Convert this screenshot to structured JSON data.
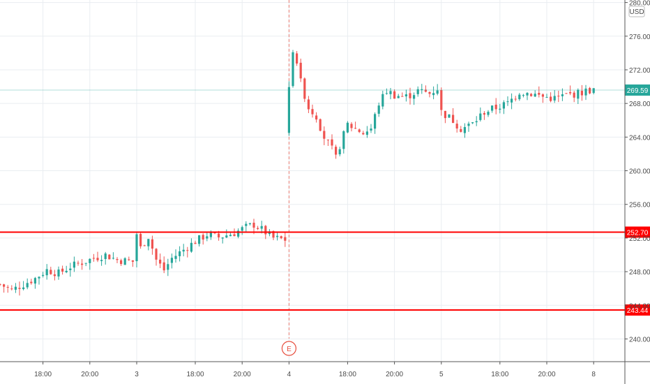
{
  "chart_data": {
    "type": "candlestick",
    "y_axis": {
      "unit_label": "USD",
      "ticks": [
        280,
        276,
        272,
        268,
        264,
        260,
        256,
        252,
        248,
        244,
        240
      ],
      "ylim": [
        237.3,
        280.3
      ]
    },
    "x_axis": {
      "ticks": [
        {
          "label": "18:00",
          "bar": 11
        },
        {
          "label": "20:00",
          "bar": 23
        },
        {
          "label": "3",
          "bar": 35
        },
        {
          "label": "18:00",
          "bar": 50
        },
        {
          "label": "20:00",
          "bar": 62
        },
        {
          "label": "4",
          "bar": 74
        },
        {
          "label": "18:00",
          "bar": 89
        },
        {
          "label": "20:00",
          "bar": 101
        },
        {
          "label": "5",
          "bar": 113
        },
        {
          "label": "18:00",
          "bar": 128
        },
        {
          "label": "20:00",
          "bar": 140
        },
        {
          "label": "8",
          "bar": 152
        }
      ]
    },
    "bars_count": 152,
    "path_anchors": [
      [
        0,
        246.5
      ],
      [
        3,
        245.8
      ],
      [
        6,
        246.5
      ],
      [
        9,
        247.2
      ],
      [
        12,
        248.2
      ],
      [
        15,
        247.8
      ],
      [
        18,
        248.6
      ],
      [
        21,
        249.1
      ],
      [
        24,
        249.6
      ],
      [
        27,
        250.0
      ],
      [
        30,
        249.4
      ],
      [
        34,
        249.2
      ],
      [
        35,
        252.5
      ],
      [
        36,
        250.8
      ],
      [
        38,
        252.2
      ],
      [
        40,
        249.4
      ],
      [
        42,
        248.2
      ],
      [
        44,
        249.6
      ],
      [
        47,
        250.6
      ],
      [
        50,
        251.6
      ],
      [
        53,
        252.4
      ],
      [
        56,
        252.1
      ],
      [
        60,
        252.6
      ],
      [
        63,
        253.3
      ],
      [
        65,
        253.6
      ],
      [
        67,
        253.0
      ],
      [
        70,
        252.0
      ],
      [
        73,
        251.8
      ],
      [
        74,
        270.0
      ],
      [
        75,
        274.5
      ],
      [
        76,
        273.0
      ],
      [
        77,
        270.5
      ],
      [
        79,
        267.5
      ],
      [
        81,
        266.5
      ],
      [
        83,
        264.0
      ],
      [
        85,
        262.5
      ],
      [
        86,
        261.5
      ],
      [
        87,
        263.0
      ],
      [
        89,
        265.5
      ],
      [
        91,
        265.0
      ],
      [
        93,
        264.5
      ],
      [
        95,
        265.0
      ],
      [
        97,
        268.0
      ],
      [
        99,
        269.5
      ],
      [
        101,
        269.0
      ],
      [
        104,
        268.8
      ],
      [
        107,
        269.5
      ],
      [
        110,
        269.2
      ],
      [
        112,
        269.8
      ],
      [
        113,
        267.0
      ],
      [
        116,
        266.0
      ],
      [
        118,
        265.0
      ],
      [
        121,
        265.6
      ],
      [
        124,
        267.0
      ],
      [
        127,
        267.5
      ],
      [
        130,
        268.0
      ],
      [
        133,
        269.4
      ],
      [
        136,
        269.2
      ],
      [
        139,
        268.8
      ],
      [
        142,
        268.6
      ],
      [
        145,
        269.0
      ],
      [
        148,
        269.2
      ],
      [
        151,
        269.6
      ],
      [
        152,
        269.5
      ]
    ],
    "horizontal_lines": [
      {
        "value": 252.7,
        "label": "252.70",
        "color": "#ff0000"
      },
      {
        "value": 243.44,
        "label": "243.44",
        "color": "#ff0000"
      }
    ],
    "last_price": {
      "value": 269.59,
      "label": "269.59",
      "color": "#26a69a"
    },
    "event_marker": {
      "bar": 74,
      "label": "E",
      "color": "#e74c3c"
    },
    "colors": {
      "up": "#26a69a",
      "down": "#ef5350",
      "grid": "#e9edf1",
      "axis": "#555555"
    }
  }
}
